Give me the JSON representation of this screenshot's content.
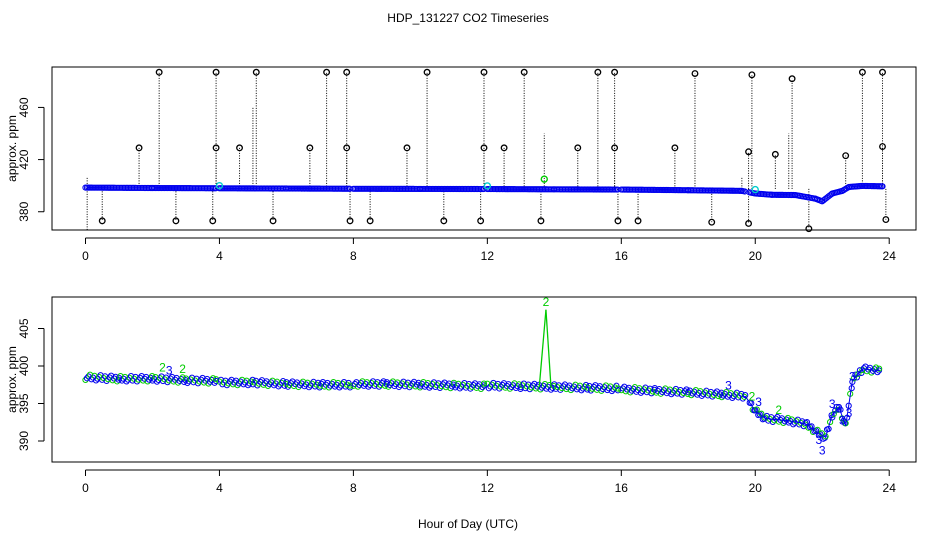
{
  "title": "HDP_131227  CO2 Timeseries",
  "xlabel": "Hour of Day (UTC)",
  "colors": {
    "axis": "#000000",
    "series_blue": "#0000ee",
    "series_green": "#00cc00",
    "series_cyan": "#00cccc",
    "spike_black": "#000000"
  },
  "chart_data": [
    {
      "type": "scatter",
      "panel": "top",
      "title": "",
      "xlabel": "",
      "ylabel": "approx. ppm",
      "xlim": [
        -1,
        24.8
      ],
      "ylim": [
        366,
        491
      ],
      "xticks": [
        0,
        4,
        8,
        12,
        16,
        20,
        24
      ],
      "yticks": [
        380,
        420,
        460
      ],
      "grid": false,
      "baseline": [
        [
          0,
          398.5
        ],
        [
          2,
          398.2
        ],
        [
          4,
          398
        ],
        [
          6,
          397.8
        ],
        [
          8,
          397.6
        ],
        [
          10,
          397.5
        ],
        [
          12,
          397.4
        ],
        [
          14,
          397.2
        ],
        [
          16,
          397
        ],
        [
          18,
          396.5
        ],
        [
          19.6,
          396
        ],
        [
          20,
          394
        ],
        [
          20.5,
          393
        ],
        [
          21.2,
          392.8
        ],
        [
          21.8,
          390
        ],
        [
          22,
          388
        ],
        [
          22.3,
          394
        ],
        [
          22.6,
          396
        ],
        [
          22.8,
          399
        ],
        [
          23.2,
          399.8
        ],
        [
          23.8,
          399.5
        ]
      ],
      "spikes_high": [
        [
          2.2,
          487
        ],
        [
          3.9,
          487
        ],
        [
          5.1,
          487
        ],
        [
          7.2,
          487
        ],
        [
          7.8,
          487
        ],
        [
          10.2,
          487
        ],
        [
          11.9,
          487
        ],
        [
          13.1,
          487
        ],
        [
          15.3,
          487
        ],
        [
          15.8,
          487
        ],
        [
          18.2,
          486
        ],
        [
          19.9,
          485
        ],
        [
          21.1,
          482
        ],
        [
          23.2,
          487
        ],
        [
          23.8,
          487
        ],
        [
          1.6,
          429
        ],
        [
          3.9,
          429
        ],
        [
          4.6,
          429
        ],
        [
          6.7,
          429
        ],
        [
          7.8,
          429
        ],
        [
          9.6,
          429
        ],
        [
          11.9,
          429
        ],
        [
          12.5,
          429
        ],
        [
          14.7,
          429
        ],
        [
          15.8,
          429
        ],
        [
          17.6,
          429
        ],
        [
          19.8,
          426
        ],
        [
          20.6,
          424
        ],
        [
          22.7,
          423
        ],
        [
          23.8,
          430
        ]
      ],
      "spikes_low": [
        [
          0.5,
          373
        ],
        [
          2.7,
          373
        ],
        [
          3.8,
          373
        ],
        [
          5.6,
          373
        ],
        [
          7.9,
          373
        ],
        [
          8.5,
          373
        ],
        [
          10.7,
          373
        ],
        [
          11.8,
          373
        ],
        [
          13.6,
          373
        ],
        [
          15.9,
          373
        ],
        [
          16.5,
          373
        ],
        [
          18.7,
          372
        ],
        [
          19.8,
          371
        ],
        [
          21.6,
          367
        ],
        [
          23.9,
          374
        ]
      ],
      "green_points": [
        [
          13.7,
          405
        ]
      ],
      "cyan_points": [
        [
          4.0,
          400
        ],
        [
          12.0,
          399.8
        ],
        [
          20.0,
          397
        ]
      ]
    },
    {
      "type": "scatter",
      "panel": "bottom",
      "title": "",
      "xlabel": "Hour of Day (UTC)",
      "ylabel": "approx. ppm",
      "xlim": [
        -1,
        24.8
      ],
      "ylim": [
        387.2,
        409.2
      ],
      "xticks": [
        0,
        4,
        8,
        12,
        16,
        20,
        24
      ],
      "yticks": [
        390,
        395,
        400,
        405
      ],
      "grid": false,
      "series": [
        {
          "values": [
            [
              0,
              398.5
            ],
            [
              1,
              398.3
            ],
            [
              2,
              398.3
            ],
            [
              3,
              398.1
            ],
            [
              3.9,
              398
            ],
            [
              4,
              397.8
            ],
            [
              5,
              397.8
            ],
            [
              6,
              397.6
            ],
            [
              7,
              397.5
            ],
            [
              7.9,
              397.5
            ],
            [
              8,
              397.6
            ],
            [
              9,
              397.6
            ],
            [
              10,
              397.5
            ],
            [
              11,
              397.4
            ],
            [
              11.9,
              397.3
            ],
            [
              12,
              397.4
            ],
            [
              13,
              397.3
            ],
            [
              14,
              397.2
            ],
            [
              15,
              397.1
            ],
            [
              15.9,
              397
            ],
            [
              16,
              396.9
            ],
            [
              17,
              396.7
            ],
            [
              18,
              396.5
            ],
            [
              19,
              396.2
            ],
            [
              19.7,
              396
            ],
            [
              20,
              394
            ],
            [
              20.3,
              393
            ],
            [
              21,
              392.7
            ],
            [
              21.5,
              392.3
            ],
            [
              21.9,
              391
            ],
            [
              22.1,
              390.5
            ],
            [
              22.3,
              393.5
            ],
            [
              22.5,
              394.5
            ],
            [
              22.7,
              392
            ],
            [
              22.9,
              398
            ],
            [
              23.2,
              399.6
            ],
            [
              23.7,
              399.4
            ]
          ]
        }
      ],
      "green_spike": [
        [
          13.55,
          397.2
        ],
        [
          13.75,
          407.5
        ],
        [
          13.9,
          397.2
        ]
      ],
      "labels": [
        {
          "text": "2",
          "x": 13.75,
          "y": 408.0,
          "color": "green"
        },
        {
          "text": "3",
          "x": 2.5,
          "y": 398.9,
          "color": "blue"
        },
        {
          "text": "2",
          "x": 2.9,
          "y": 399.1,
          "color": "green"
        },
        {
          "text": "2",
          "x": 2.3,
          "y": 399.3,
          "color": "green"
        },
        {
          "text": "3",
          "x": 19.2,
          "y": 396.9,
          "color": "blue"
        },
        {
          "text": "2",
          "x": 19.9,
          "y": 395.4,
          "color": "green"
        },
        {
          "text": "3",
          "x": 20.1,
          "y": 394.7,
          "color": "blue"
        },
        {
          "text": "2",
          "x": 20.7,
          "y": 393.6,
          "color": "green"
        },
        {
          "text": "3",
          "x": 21.9,
          "y": 389.6,
          "color": "blue"
        },
        {
          "text": "3",
          "x": 22.0,
          "y": 388.2,
          "color": "blue"
        },
        {
          "text": "3",
          "x": 22.3,
          "y": 394.4,
          "color": "blue"
        },
        {
          "text": "3",
          "x": 22.5,
          "y": 393.8,
          "color": "blue"
        },
        {
          "text": "3",
          "x": 22.6,
          "y": 392.2,
          "color": "blue"
        },
        {
          "text": "3",
          "x": 22.8,
          "y": 393.2,
          "color": "blue"
        },
        {
          "text": "3",
          "x": 22.9,
          "y": 398.1,
          "color": "blue"
        }
      ]
    }
  ]
}
